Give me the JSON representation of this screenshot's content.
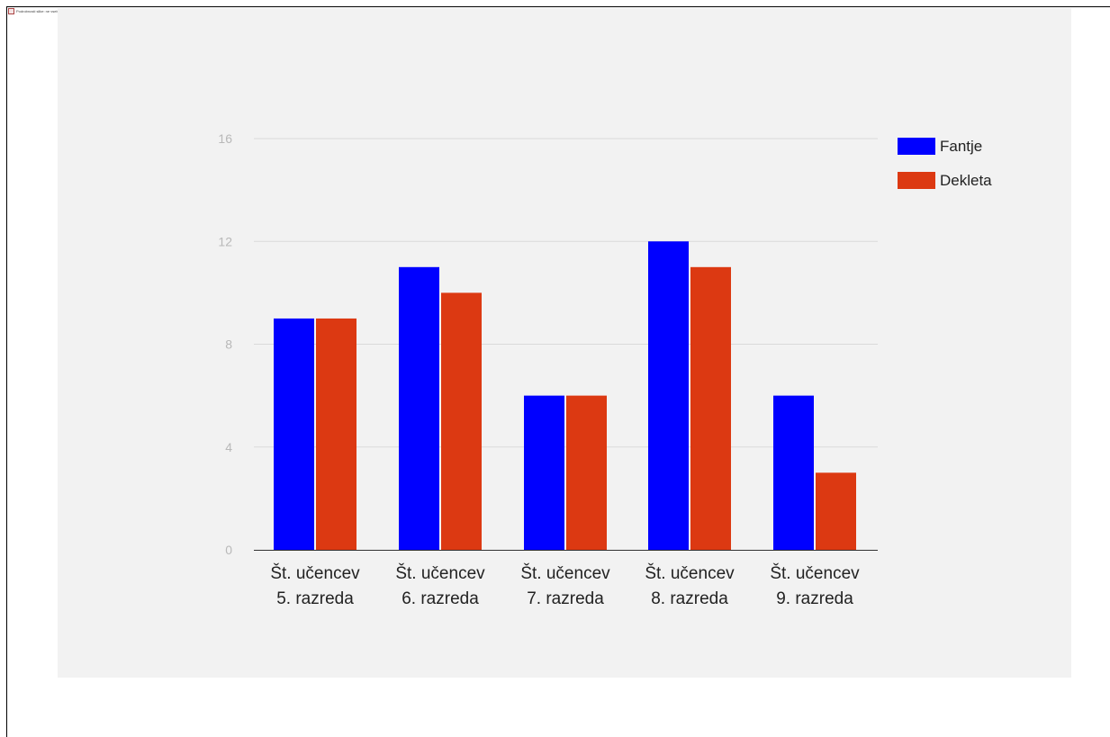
{
  "caption": "Podrobnosti slike: ne vsebuje vseh podatkov – Google grafikon",
  "chart_data": {
    "type": "bar",
    "title": "",
    "xlabel": "",
    "ylabel": "",
    "categories": [
      [
        "Št. učencev",
        "5. razreda"
      ],
      [
        "Št. učencev",
        "6. razreda"
      ],
      [
        "Št. učencev",
        "7. razreda"
      ],
      [
        "Št. učencev",
        "8. razreda"
      ],
      [
        "Št. učencev",
        "9. razreda"
      ]
    ],
    "series": [
      {
        "name": "Fantje",
        "color": "#0000ff",
        "values": [
          9,
          11,
          6,
          12,
          6
        ]
      },
      {
        "name": "Dekleta",
        "color": "#dc3912",
        "values": [
          9,
          10,
          6,
          11,
          3
        ]
      }
    ],
    "ylim": [
      0,
      16
    ],
    "yticks": [
      "0",
      "4",
      "8",
      "12",
      "16"
    ],
    "grid": true,
    "legend_position": "right"
  }
}
